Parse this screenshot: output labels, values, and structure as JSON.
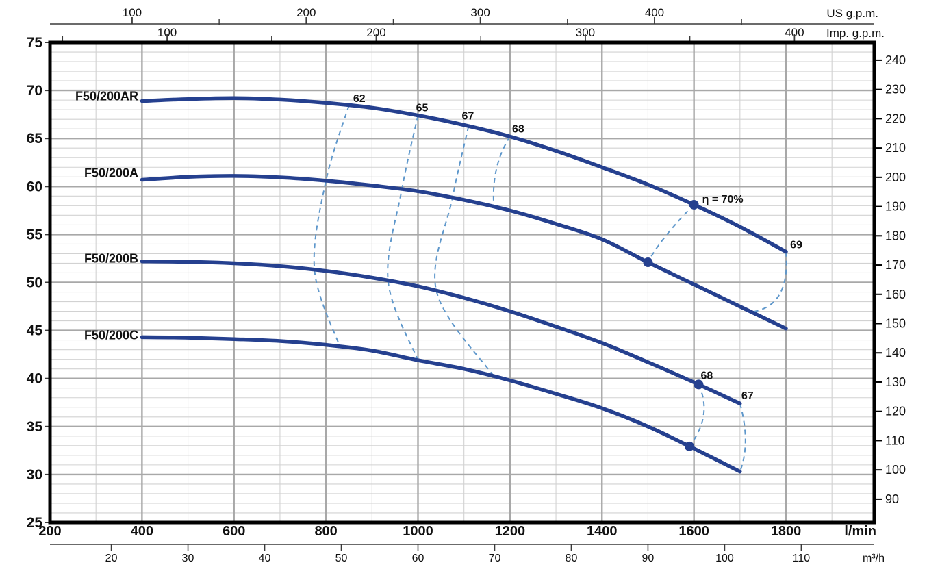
{
  "page": {
    "background": "#ffffff"
  },
  "chart_data": {
    "type": "line",
    "title": "",
    "axes": {
      "flow_lmin": {
        "unit_label": "l/min",
        "range": [
          200,
          1992
        ],
        "major_ticks": [
          200,
          400,
          600,
          800,
          1000,
          1200,
          1400,
          1600,
          1800
        ],
        "minor_step": 100
      },
      "flow_m3h": {
        "unit_label": "m³/h",
        "ticks": [
          20,
          30,
          40,
          50,
          60,
          70,
          80,
          90,
          100,
          110
        ],
        "lmin_per_unit": 16.6667
      },
      "flow_us_gpm": {
        "unit_label": "US g.p.m.",
        "ticks": [
          100,
          200,
          300,
          400
        ],
        "minor_ticks": [
          150,
          250,
          350,
          450
        ],
        "lmin_per_unit": 3.78541
      },
      "flow_imp_gpm": {
        "unit_label": "Imp. g.p.m.",
        "ticks": [
          100,
          200,
          300,
          400
        ],
        "minor_ticks": [
          50,
          150,
          250,
          350
        ],
        "lmin_per_unit": 4.54609
      },
      "head_m": {
        "range": [
          25,
          75
        ],
        "major_ticks": [
          25,
          30,
          35,
          40,
          45,
          50,
          55,
          60,
          65,
          70,
          75
        ],
        "minor_step": 1
      },
      "head_ft": {
        "ticks": [
          90,
          100,
          110,
          120,
          130,
          140,
          150,
          160,
          170,
          180,
          190,
          200,
          210,
          220,
          230,
          240
        ],
        "m_per_unit": 0.3048
      }
    },
    "series": [
      {
        "id": "AR",
        "label": "F50/200AR",
        "label_pos": {
          "q": 392,
          "h": 69.4
        },
        "points": [
          [
            400,
            68.9
          ],
          [
            500,
            69.1
          ],
          [
            600,
            69.2
          ],
          [
            700,
            69.05
          ],
          [
            800,
            68.7
          ],
          [
            900,
            68.2
          ],
          [
            1000,
            67.4
          ],
          [
            1100,
            66.4
          ],
          [
            1200,
            65.2
          ],
          [
            1300,
            63.7
          ],
          [
            1400,
            62.0
          ],
          [
            1500,
            60.2
          ],
          [
            1600,
            58.1
          ],
          [
            1700,
            55.8
          ],
          [
            1800,
            53.2
          ]
        ]
      },
      {
        "id": "A",
        "label": "F50/200A",
        "label_pos": {
          "q": 392,
          "h": 61.4
        },
        "points": [
          [
            400,
            60.7
          ],
          [
            500,
            61.0
          ],
          [
            600,
            61.1
          ],
          [
            700,
            60.95
          ],
          [
            800,
            60.6
          ],
          [
            900,
            60.1
          ],
          [
            1000,
            59.5
          ],
          [
            1100,
            58.6
          ],
          [
            1200,
            57.5
          ],
          [
            1300,
            56.1
          ],
          [
            1400,
            54.5
          ],
          [
            1500,
            52.1
          ],
          [
            1600,
            49.8
          ],
          [
            1700,
            47.5
          ],
          [
            1800,
            45.2
          ]
        ]
      },
      {
        "id": "B",
        "label": "F50/200B",
        "label_pos": {
          "q": 392,
          "h": 52.5
        },
        "points": [
          [
            400,
            52.2
          ],
          [
            500,
            52.15
          ],
          [
            600,
            52.0
          ],
          [
            700,
            51.7
          ],
          [
            800,
            51.2
          ],
          [
            900,
            50.5
          ],
          [
            1000,
            49.6
          ],
          [
            1100,
            48.4
          ],
          [
            1200,
            47.0
          ],
          [
            1300,
            45.4
          ],
          [
            1400,
            43.7
          ],
          [
            1500,
            41.7
          ],
          [
            1600,
            39.6
          ],
          [
            1700,
            37.4
          ]
        ]
      },
      {
        "id": "C",
        "label": "F50/200C",
        "label_pos": {
          "q": 392,
          "h": 44.5
        },
        "points": [
          [
            400,
            44.3
          ],
          [
            500,
            44.25
          ],
          [
            600,
            44.1
          ],
          [
            700,
            43.9
          ],
          [
            800,
            43.5
          ],
          [
            900,
            42.9
          ],
          [
            1000,
            41.9
          ],
          [
            1100,
            41.0
          ],
          [
            1200,
            39.8
          ],
          [
            1300,
            38.4
          ],
          [
            1400,
            36.9
          ],
          [
            1500,
            35.0
          ],
          [
            1600,
            32.7
          ],
          [
            1700,
            30.3
          ]
        ]
      }
    ],
    "efficiency": {
      "dots": [
        [
          "AR",
          1600
        ],
        [
          "A",
          1500
        ],
        [
          "B",
          1610
        ],
        [
          "C",
          1590
        ]
      ],
      "lines": [
        {
          "label": "62",
          "anchors": [
            [
              "AR",
              850
            ],
            [
              "A",
              800
            ],
            [
              "B",
              775
            ],
            [
              "C",
              830
            ]
          ],
          "label_offset": [
            15,
            -5
          ],
          "label_anchor": "middle"
        },
        {
          "label": "65",
          "anchors": [
            [
              "AR",
              1000
            ],
            [
              "A",
              965
            ],
            [
              "B",
              935
            ],
            [
              "C",
              1000
            ]
          ],
          "label_offset": [
            6,
            -6
          ],
          "label_anchor": "middle"
        },
        {
          "label": "67",
          "anchors": [
            [
              "AR",
              1110
            ],
            [
              "A",
              1075
            ],
            [
              "B",
              1040
            ],
            [
              "C",
              1165
            ]
          ],
          "label_offset": [
            -1,
            -10
          ],
          "label_anchor": "middle"
        },
        {
          "label": "68",
          "anchors": [
            [
              "AR",
              1200
            ],
            [
              "A",
              1165
            ]
          ],
          "bow": [
            -8,
            -4
          ],
          "label_offset": [
            12,
            -6
          ],
          "label_anchor": "middle"
        },
        {
          "label": "η = 70%",
          "anchors": [
            [
              "AR",
              1600
            ],
            [
              "A",
              1500
            ]
          ],
          "bow": [
            -8,
            4
          ],
          "label_offset": [
            12,
            -3
          ],
          "label_anchor": "start"
        },
        {
          "label": "69",
          "anchors": [
            [
              "AR",
              1800
            ],
            [
              "A",
              1725
            ]
          ],
          "bow": [
            16,
            18
          ],
          "label_offset": [
            15,
            -5
          ],
          "label_anchor": "middle"
        },
        {
          "label": "68",
          "anchors": [
            [
              "B",
              1610
            ],
            [
              "C",
              1590
            ]
          ],
          "bow": [
            14,
            0
          ],
          "label_offset": [
            12,
            -8
          ],
          "label_anchor": "middle"
        },
        {
          "label": "67",
          "anchors": [
            [
              "B",
              1700
            ],
            [
              "C",
              1700
            ]
          ],
          "bow": [
            8,
            4
          ],
          "label_offset": [
            11,
            -6
          ],
          "label_anchor": "middle"
        }
      ]
    },
    "style": {
      "curve_color": "#25408f",
      "efficiency_color": "#5e97cb",
      "grid_minor_color": "#d2d2d2",
      "grid_major_color": "#a8a8a8",
      "frame_color": "#000000",
      "axis_line_color": "#3a3a3a",
      "text_color": "#111111"
    }
  }
}
